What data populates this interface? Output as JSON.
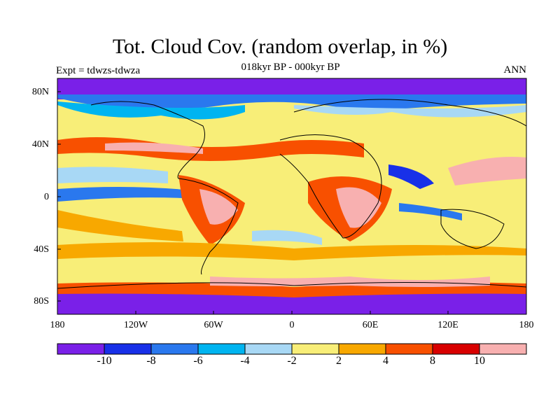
{
  "header": {
    "title": "Tot. Cloud Cov. (random overlap, in %)",
    "subtitle": "018kyr BP - 000kyr BP",
    "experiment": "Expt = tdwzs-tdwza",
    "season": "ANN"
  },
  "axes": {
    "lat_labels": [
      "80N",
      "40N",
      "0",
      "40S",
      "80S"
    ],
    "lon_labels": [
      "180",
      "120W",
      "60W",
      "0",
      "60E",
      "120E",
      "180"
    ]
  },
  "colorbar": {
    "labels": [
      "-10",
      "-8",
      "-6",
      "-4",
      "-2",
      "2",
      "4",
      "8",
      "10"
    ],
    "colors": [
      "#7a20e8",
      "#1830e8",
      "#2a78ee",
      "#00b4f0",
      "#a8d8f5",
      "#f8ee78",
      "#f8a800",
      "#f85000",
      "#d80000",
      "#f8b0b0"
    ]
  },
  "colors": {
    "land_outline": "#000000",
    "frame": "#000000"
  }
}
